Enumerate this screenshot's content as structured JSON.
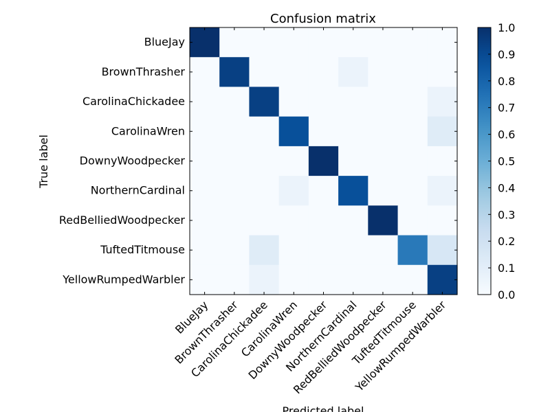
{
  "chart_data": {
    "type": "heatmap",
    "title": "Confusion matrix",
    "xlabel": "Predicted label",
    "ylabel": "True label",
    "row_labels": [
      "BlueJay",
      "BrownThrasher",
      "CarolinaChickadee",
      "CarolinaWren",
      "DownyWoodpecker",
      "NorthernCardinal",
      "RedBelliedWoodpecker",
      "TuftedTitmouse",
      "YellowRumpedWarbler"
    ],
    "col_labels": [
      "BlueJay",
      "BrownThrasher",
      "CarolinaChickadee",
      "CarolinaWren",
      "DownyWoodpecker",
      "NorthernCardinal",
      "RedBelliedWoodpecker",
      "TuftedTitmouse",
      "YellowRumpedWarbler"
    ],
    "values": [
      [
        1.0,
        0,
        0,
        0,
        0,
        0,
        0,
        0,
        0
      ],
      [
        0,
        0.94,
        0,
        0,
        0,
        0.06,
        0,
        0,
        0
      ],
      [
        0,
        0,
        0.94,
        0,
        0,
        0,
        0,
        0,
        0.06
      ],
      [
        0,
        0,
        0,
        0.88,
        0,
        0,
        0,
        0,
        0.12
      ],
      [
        0,
        0,
        0,
        0,
        1.0,
        0,
        0,
        0,
        0
      ],
      [
        0,
        0,
        0,
        0.06,
        0,
        0.88,
        0,
        0,
        0.06
      ],
      [
        0,
        0,
        0,
        0,
        0,
        0,
        1.0,
        0,
        0
      ],
      [
        0,
        0,
        0.12,
        0,
        0,
        0,
        0,
        0.72,
        0.16
      ],
      [
        0,
        0,
        0.06,
        0,
        0,
        0,
        0,
        0,
        0.94
      ]
    ],
    "colorbar": {
      "min": 0.0,
      "max": 1.0,
      "ticks": [
        "0.0",
        "0.1",
        "0.2",
        "0.3",
        "0.4",
        "0.5",
        "0.6",
        "0.7",
        "0.8",
        "0.9",
        "1.0"
      ]
    },
    "colormap": "Blues",
    "grid": false
  }
}
